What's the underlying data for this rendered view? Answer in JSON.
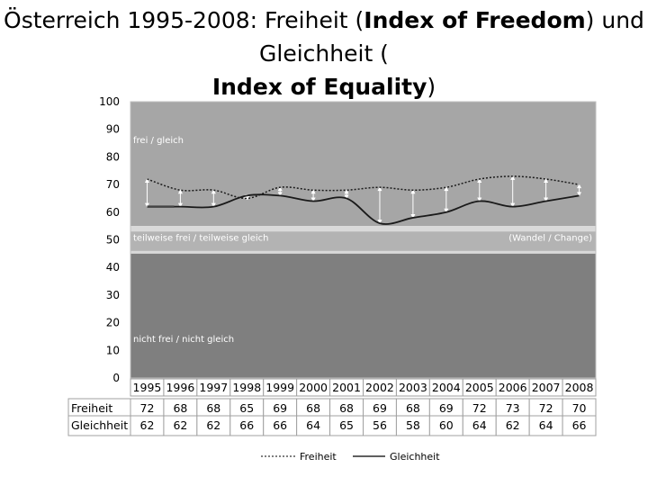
{
  "title": {
    "part1": "Österreich 1995-2008: Freiheit (",
    "bold1": "Index of Freedom",
    "part2": ") und Gleichheit (",
    "bold2": "Index of Equality",
    "part3": ")"
  },
  "chart_data": {
    "type": "line",
    "title": "Österreich 1995-2008: Freiheit (Index of Freedom) und Gleichheit (Index of Equality)",
    "categories": [
      "1995",
      "1996",
      "1997",
      "1998",
      "1999",
      "2000",
      "2001",
      "2002",
      "2003",
      "2004",
      "2005",
      "2006",
      "2007",
      "2008"
    ],
    "series": [
      {
        "name": "Freiheit",
        "values": [
          72,
          68,
          68,
          65,
          69,
          68,
          68,
          69,
          68,
          69,
          72,
          73,
          72,
          70
        ]
      },
      {
        "name": "Gleichheit",
        "values": [
          62,
          62,
          62,
          66,
          66,
          64,
          65,
          56,
          58,
          60,
          64,
          62,
          64,
          66
        ]
      }
    ],
    "ylim": [
      0,
      100
    ],
    "yticks": [
      "0",
      "10",
      "20",
      "30",
      "40",
      "50",
      "60",
      "70",
      "80",
      "90",
      "100"
    ],
    "zones": {
      "top": "frei / gleich",
      "middle": "teilweise frei / teilweise gleich",
      "middle_right": "(Wandel / Change)",
      "bottom": "nicht frei / nicht gleich"
    },
    "table_labels": {
      "freiheit": "Freiheit",
      "gleichheit": "Gleichheit"
    },
    "legend": {
      "freiheit": "Freiheit",
      "gleichheit": "Gleichheit"
    },
    "colors": {
      "top_zone": "#a6a6a6",
      "middle_band": "#d9d9d9",
      "bottom_zone": "#7f7f7f",
      "line": "#1a1a1a"
    }
  }
}
